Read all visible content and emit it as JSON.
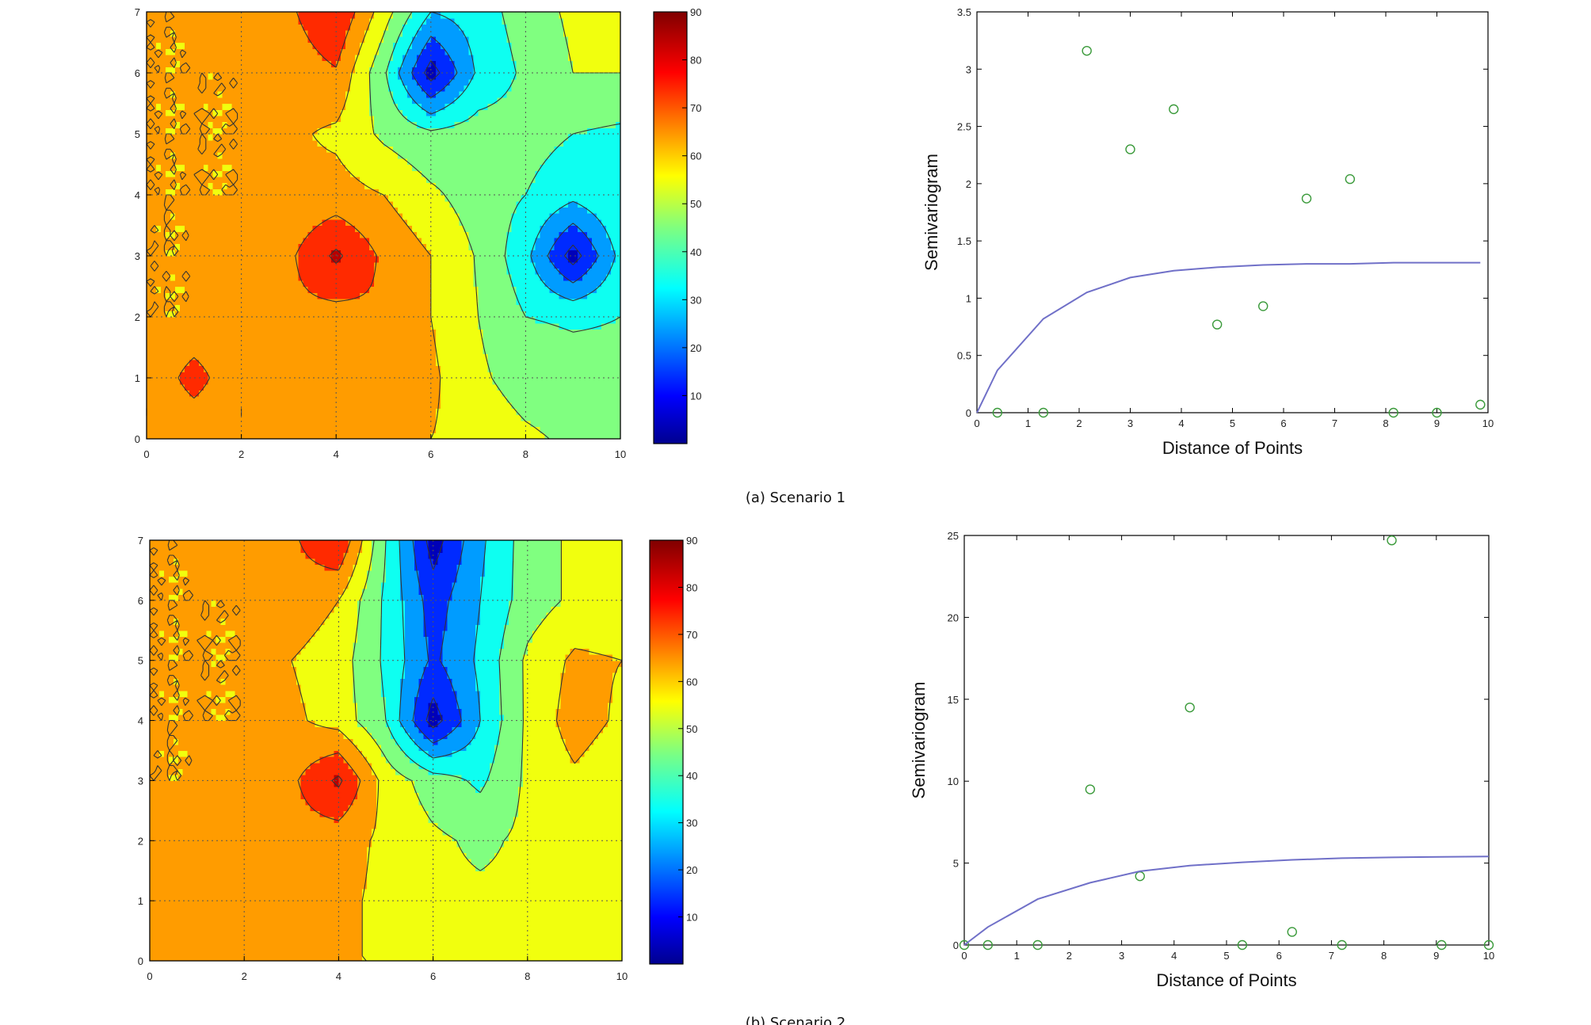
{
  "captions": {
    "a": "(a) Scenario 1",
    "b": "(b) Scenario 2"
  },
  "chart_data": [
    {
      "type": "heatmap",
      "subtype": "filled-contour",
      "panel": "a",
      "xlim": [
        0,
        10
      ],
      "ylim": [
        0,
        7
      ],
      "xticks": [
        0,
        2,
        4,
        6,
        8,
        10
      ],
      "yticks": [
        0,
        1,
        2,
        3,
        4,
        5,
        6,
        7
      ],
      "grid": true,
      "colorbar": {
        "range": [
          0,
          90
        ],
        "ticks": [
          10,
          20,
          30,
          40,
          50,
          60,
          70,
          80,
          90
        ],
        "colormap": "jet"
      },
      "levels": [
        0,
        10,
        20,
        30,
        40,
        50,
        60,
        70,
        80,
        90
      ],
      "grid_x": [
        0,
        1,
        2,
        3,
        4,
        5,
        6,
        7,
        8,
        9,
        10
      ],
      "grid_y": [
        0,
        1,
        2,
        3,
        4,
        5,
        6,
        7
      ],
      "z": [
        [
          60,
          60,
          60,
          60,
          60,
          60,
          60,
          57,
          52,
          48,
          44
        ],
        [
          60,
          75,
          60,
          62,
          64,
          63,
          62,
          52,
          45,
          43,
          42
        ],
        [
          60,
          60,
          61,
          68,
          66,
          69,
          60,
          50,
          40,
          39,
          40
        ],
        [
          60,
          60,
          61,
          68,
          82,
          68,
          60,
          49,
          33,
          5,
          33
        ],
        [
          60,
          60,
          60,
          62,
          64,
          60,
          52,
          45,
          40,
          33,
          40
        ],
        [
          60,
          60,
          60,
          62,
          58,
          48,
          42,
          45,
          44,
          40,
          38
        ],
        [
          60,
          60,
          60,
          64,
          69,
          42,
          5,
          32,
          42,
          50,
          50
        ],
        [
          60,
          60,
          65,
          68,
          80,
          55,
          30,
          35,
          45,
          52,
          52
        ]
      ]
    },
    {
      "type": "scatter",
      "panel": "a",
      "xlabel": "Distance of Points",
      "ylabel": "Semivariogram",
      "xlim": [
        0,
        10
      ],
      "ylim": [
        0,
        3.5
      ],
      "xticks": [
        0,
        1,
        2,
        3,
        4,
        5,
        6,
        7,
        8,
        9,
        10
      ],
      "yticks": [
        0,
        0.5,
        1,
        1.5,
        2,
        2.5,
        3,
        3.5
      ],
      "series": [
        {
          "kind": "points",
          "color": "#3a9a3a",
          "x": [
            0.4,
            1.3,
            2.15,
            3.0,
            3.85,
            4.7,
            5.6,
            6.45,
            7.3,
            8.15,
            9.0,
            9.85
          ],
          "y": [
            0.0,
            0.0,
            3.16,
            2.3,
            2.65,
            0.77,
            0.93,
            1.87,
            2.04,
            0.0,
            0.0,
            0.07
          ]
        },
        {
          "kind": "line",
          "color": "#7070c8",
          "x": [
            0,
            0.4,
            1.3,
            2.15,
            3.0,
            3.85,
            4.7,
            5.6,
            6.45,
            7.3,
            8.15,
            9.0,
            9.85
          ],
          "y": [
            0.0,
            0.37,
            0.82,
            1.05,
            1.18,
            1.24,
            1.27,
            1.29,
            1.3,
            1.3,
            1.31,
            1.31,
            1.31
          ]
        }
      ]
    },
    {
      "type": "heatmap",
      "subtype": "filled-contour",
      "panel": "b",
      "xlim": [
        0,
        10
      ],
      "ylim": [
        0,
        7
      ],
      "xticks": [
        0,
        2,
        4,
        6,
        8,
        10
      ],
      "yticks": [
        0,
        1,
        2,
        3,
        4,
        5,
        6,
        7
      ],
      "grid": true,
      "colorbar": {
        "range": [
          0,
          90
        ],
        "ticks": [
          10,
          20,
          30,
          40,
          50,
          60,
          70,
          80,
          90
        ],
        "colormap": "jet"
      },
      "levels": [
        0,
        10,
        20,
        30,
        40,
        50,
        60,
        70,
        80,
        90
      ],
      "grid_x": [
        0,
        1,
        2,
        3,
        4,
        5,
        6,
        7,
        8,
        9,
        10
      ],
      "grid_y": [
        0,
        1,
        2,
        3,
        4,
        5,
        6,
        7
      ],
      "z": [
        [
          60,
          60,
          60,
          60,
          60,
          60,
          52,
          52,
          52,
          52,
          52
        ],
        [
          68,
          66,
          66,
          64,
          62,
          58,
          52,
          52,
          52,
          52,
          52
        ],
        [
          60,
          66,
          68,
          66,
          64,
          58,
          52,
          48,
          52,
          52,
          52
        ],
        [
          60,
          60,
          66,
          68,
          82,
          56,
          45,
          38,
          52,
          58,
          52
        ],
        [
          60,
          60,
          60,
          62,
          56,
          40,
          5,
          30,
          52,
          65,
          58
        ],
        [
          60,
          60,
          60,
          60,
          55,
          38,
          18,
          32,
          52,
          62,
          60
        ],
        [
          60,
          60,
          60,
          66,
          60,
          38,
          15,
          30,
          45,
          52,
          52
        ],
        [
          60,
          60,
          66,
          68,
          80,
          40,
          5,
          28,
          45,
          52,
          52
        ]
      ]
    },
    {
      "type": "scatter",
      "panel": "b",
      "xlabel": "Distance of Points",
      "ylabel": "Semivariogram",
      "xlim": [
        0,
        10
      ],
      "ylim": [
        0,
        25
      ],
      "xticks": [
        0,
        1,
        2,
        3,
        4,
        5,
        6,
        7,
        8,
        9,
        10
      ],
      "yticks": [
        0,
        5,
        10,
        15,
        20,
        25
      ],
      "series": [
        {
          "kind": "points",
          "color": "#3a9a3a",
          "x": [
            0.0,
            0.45,
            1.4,
            2.4,
            3.35,
            4.3,
            5.3,
            6.25,
            7.2,
            8.15,
            9.1,
            10.0
          ],
          "y": [
            0.0,
            0.0,
            0.0,
            9.5,
            4.2,
            14.5,
            0.0,
            0.8,
            0.0,
            24.7,
            0.0,
            0.0
          ]
        },
        {
          "kind": "line",
          "color": "#7070c8",
          "x": [
            0,
            0.45,
            1.4,
            2.4,
            3.35,
            4.3,
            5.3,
            6.25,
            7.2,
            8.15,
            9.1,
            10.0
          ],
          "y": [
            0.0,
            1.1,
            2.8,
            3.8,
            4.5,
            4.85,
            5.05,
            5.2,
            5.3,
            5.35,
            5.38,
            5.4
          ]
        }
      ]
    }
  ]
}
